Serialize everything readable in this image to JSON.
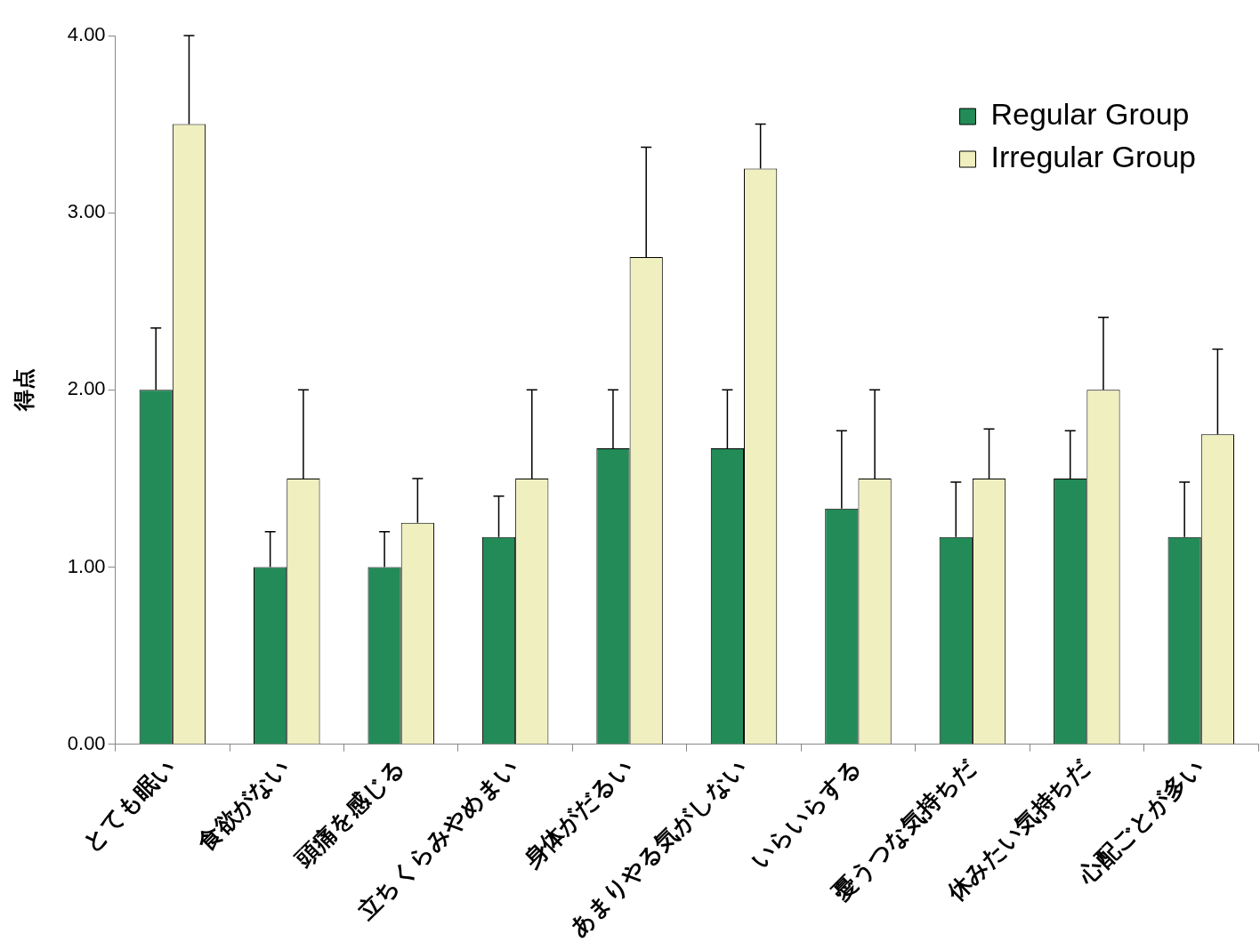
{
  "chart_data": {
    "type": "bar",
    "ylabel": "得点",
    "categories": [
      "とても眠い",
      "食欲がない",
      "頭痛を感じる",
      "立ちくらみやめまい",
      "身体がだるい",
      "あまりやる気がしない",
      "いらいらする",
      "憂うつな気持ちだ",
      "休みたい気持ちだ",
      "心配ごとが多い"
    ],
    "series": [
      {
        "name": "Regular Group",
        "color": "#238b57",
        "values": [
          2.0,
          1.0,
          1.0,
          1.17,
          1.67,
          1.67,
          1.33,
          1.17,
          1.5,
          1.17
        ],
        "errors": [
          [
            2.0,
            2.35
          ],
          [
            1.0,
            1.2
          ],
          [
            1.0,
            1.2
          ],
          [
            1.17,
            1.4
          ],
          [
            1.67,
            2.0
          ],
          [
            1.67,
            2.0
          ],
          [
            1.33,
            1.77
          ],
          [
            1.17,
            1.48
          ],
          [
            1.5,
            1.77
          ],
          [
            1.17,
            1.48
          ]
        ]
      },
      {
        "name": "Irregular Group",
        "color": "#f0efc0",
        "values": [
          3.5,
          1.5,
          1.25,
          1.5,
          2.75,
          3.25,
          1.5,
          1.5,
          2.0,
          1.75
        ],
        "errors": [
          [
            3.5,
            4.0
          ],
          [
            1.5,
            2.0
          ],
          [
            1.25,
            1.5
          ],
          [
            1.5,
            2.0
          ],
          [
            2.75,
            3.37
          ],
          [
            3.25,
            3.5
          ],
          [
            1.5,
            2.0
          ],
          [
            1.5,
            1.78
          ],
          [
            2.0,
            2.41
          ],
          [
            1.75,
            2.23
          ]
        ]
      }
    ],
    "ylim": [
      0,
      4
    ],
    "yticks": [
      {
        "value": 0,
        "label": "0.00"
      },
      {
        "value": 1,
        "label": "1.00"
      },
      {
        "value": 2,
        "label": "2.00"
      },
      {
        "value": 3,
        "label": "3.00"
      },
      {
        "value": 4,
        "label": "4.00"
      }
    ],
    "grid": false,
    "legend": "top right"
  }
}
